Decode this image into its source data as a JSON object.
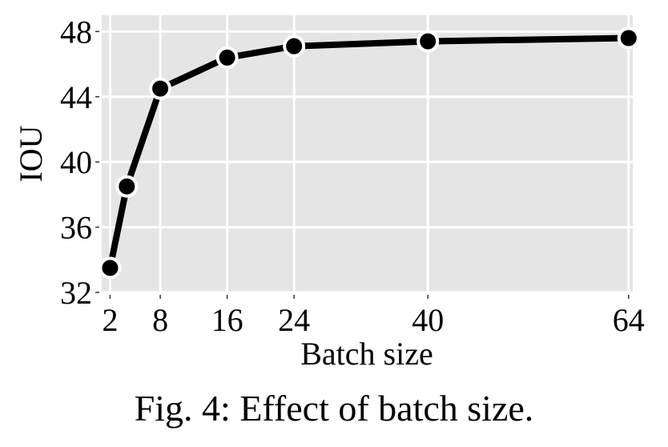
{
  "chart_data": {
    "type": "line",
    "title": "",
    "xlabel": "Batch size",
    "ylabel": "IOU",
    "x": [
      2,
      4,
      8,
      16,
      24,
      40,
      64
    ],
    "series": [
      {
        "name": "IOU",
        "values": [
          33.5,
          38.5,
          44.5,
          46.4,
          47.1,
          47.4,
          47.6
        ],
        "color": "#000000"
      }
    ],
    "xticks": [
      2,
      8,
      16,
      24,
      40,
      64
    ],
    "yticks": [
      32,
      36,
      40,
      44,
      48
    ],
    "xlim": [
      1,
      64.5
    ],
    "ylim": [
      32,
      49
    ],
    "grid": true,
    "legend": "none",
    "panel_background": "#e5e5e5",
    "grid_color": "#ffffff"
  },
  "caption": "Fig. 4: Effect of batch size."
}
